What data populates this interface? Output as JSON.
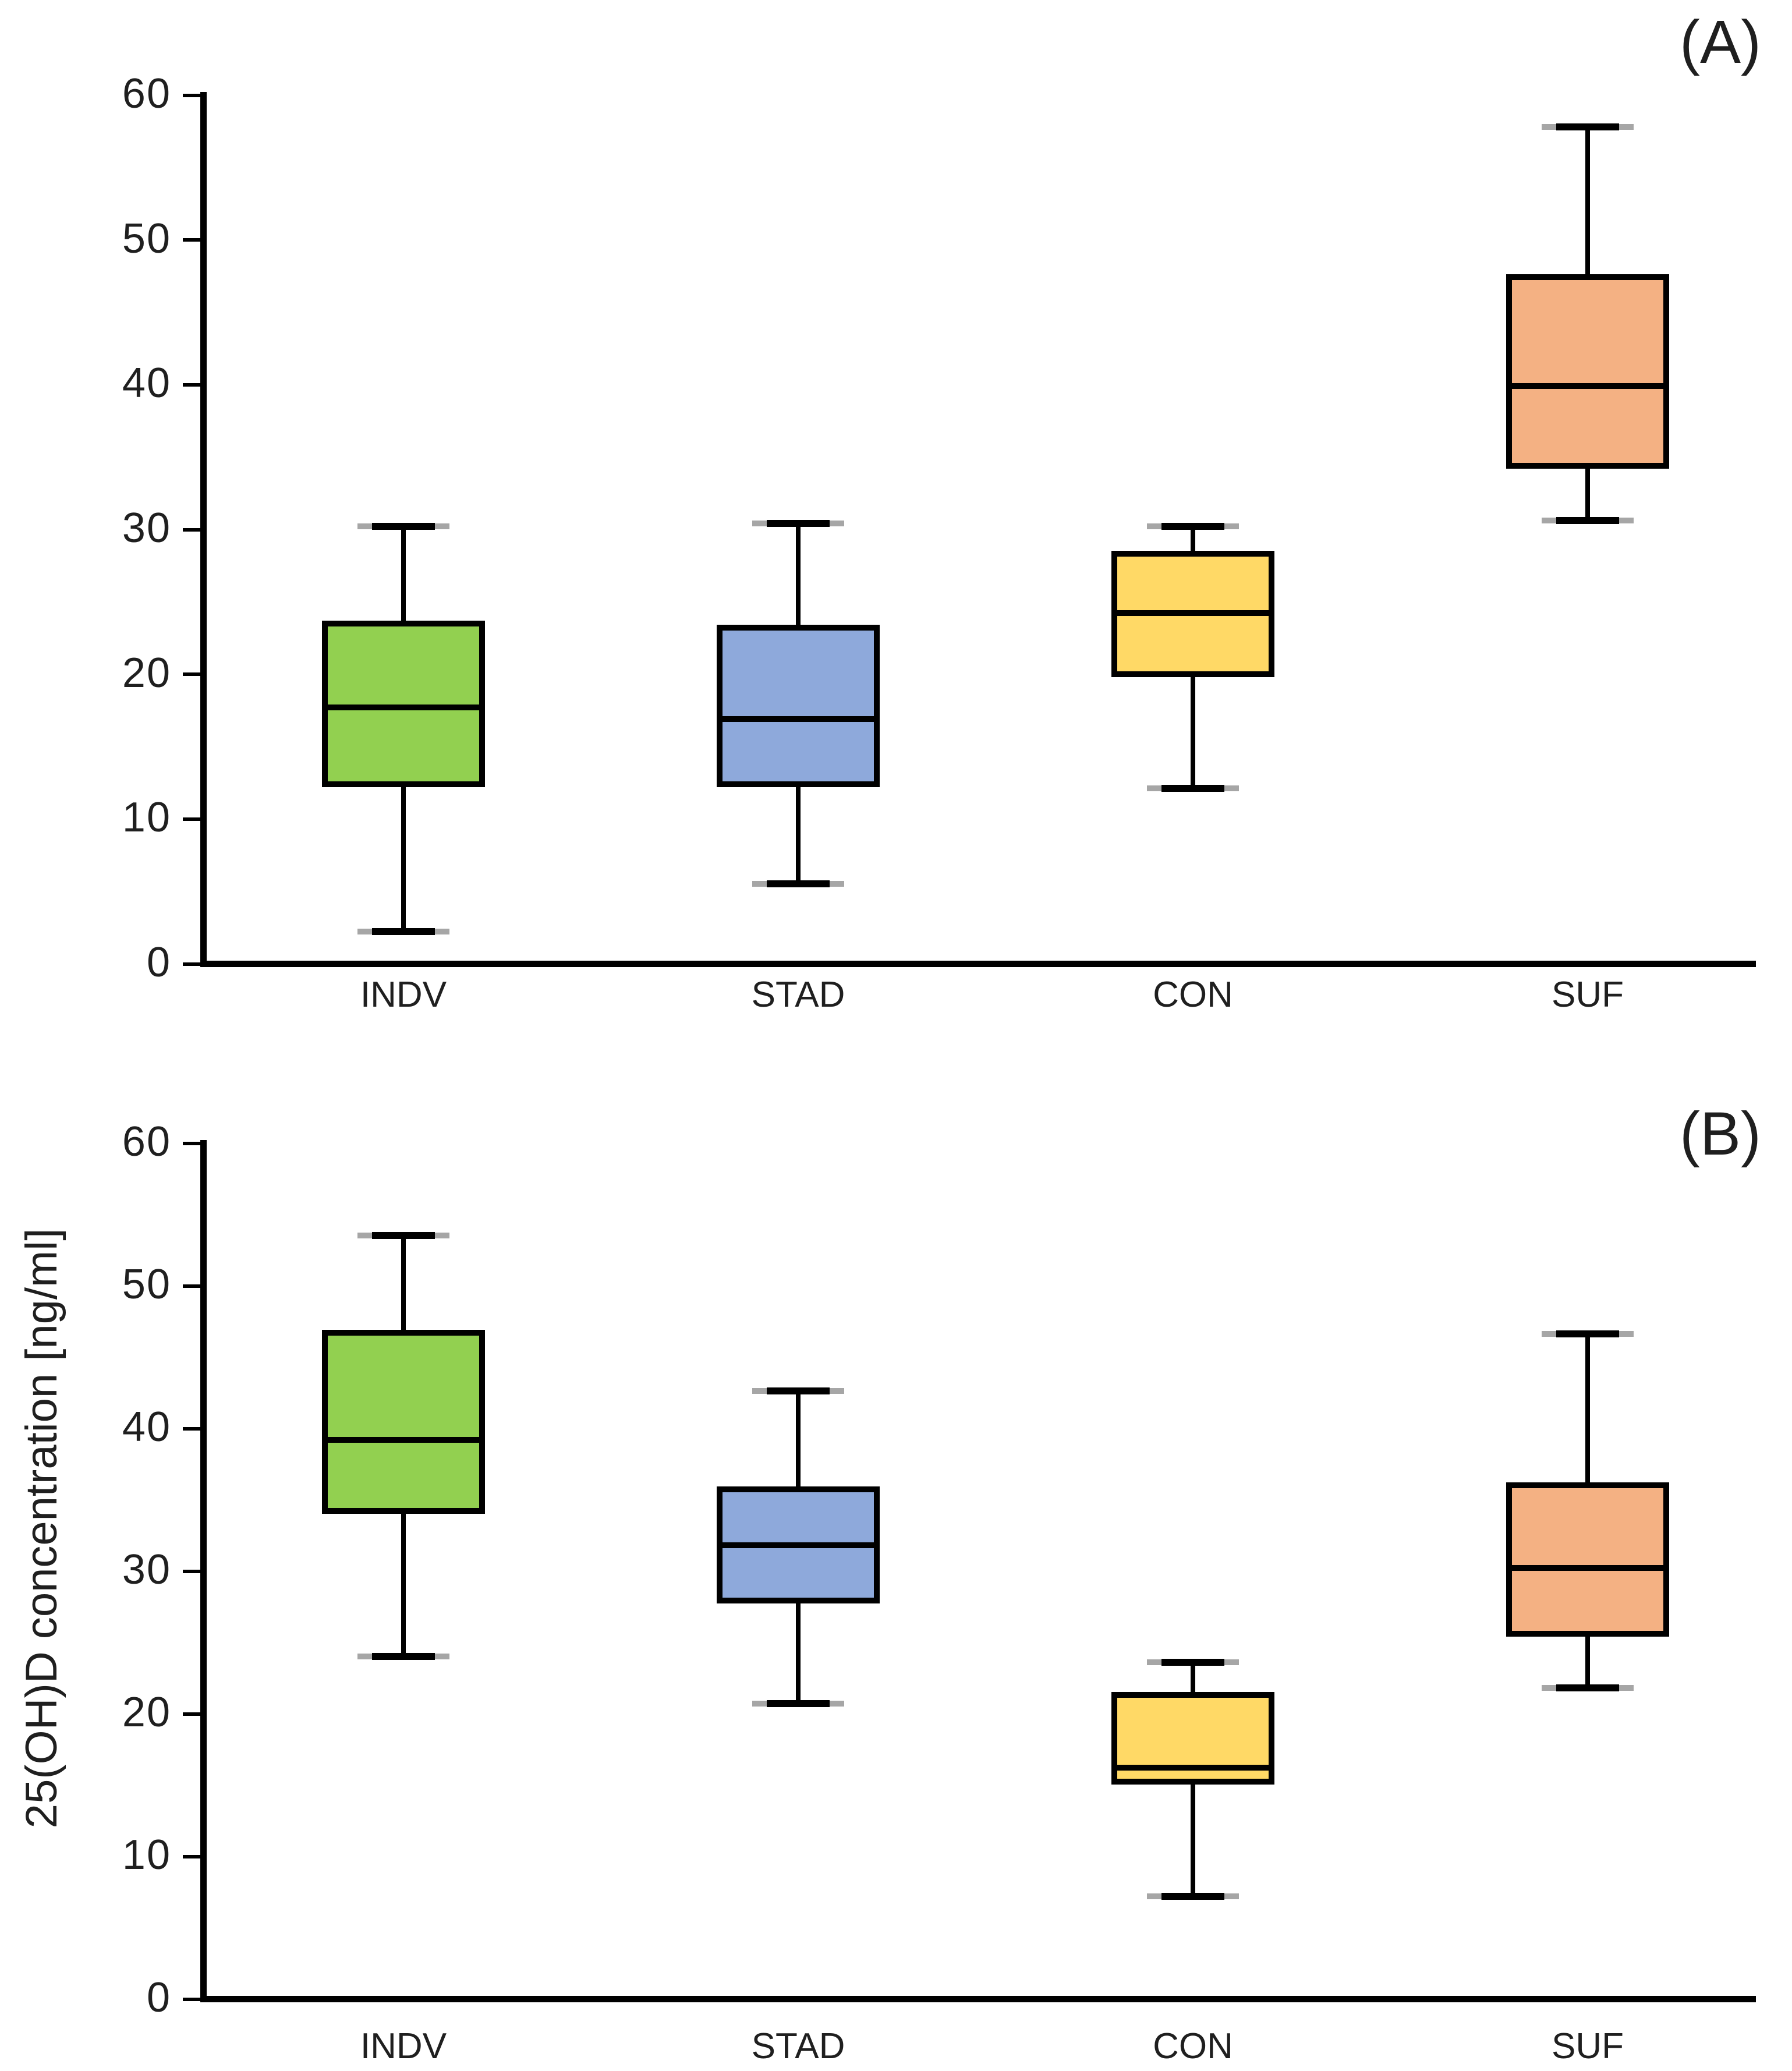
{
  "figure": {
    "background": "#ffffff",
    "ylabel": "25(OH)D concentration [ng/ml]",
    "text_color": "#1f1f1f",
    "line_color": "#000000",
    "panel_letters": [
      "(A)",
      "(B)"
    ]
  },
  "chart_data": [
    {
      "type": "boxplot",
      "panel": "A",
      "title": "(A)",
      "categories": [
        "INDV",
        "STAD",
        "CON",
        "SUF"
      ],
      "ylim": [
        0,
        60
      ],
      "yticks": [
        0,
        10,
        20,
        30,
        40,
        50,
        60
      ],
      "grid": false,
      "legend": "none",
      "series": [
        {
          "name": "INDV",
          "color": "#92D050",
          "whisker_low": 2.0,
          "q1": 12.0,
          "median": 17.5,
          "q3": 23.5,
          "whisker_high": 30.0
        },
        {
          "name": "STAD",
          "color": "#8EA9DB",
          "whisker_low": 5.3,
          "q1": 12.0,
          "median": 16.7,
          "q3": 23.2,
          "whisker_high": 30.2
        },
        {
          "name": "CON",
          "color": "#FFD966",
          "whisker_low": 11.9,
          "q1": 19.6,
          "median": 24.0,
          "q3": 28.3,
          "whisker_high": 30.0
        },
        {
          "name": "SUF",
          "color": "#F4B183",
          "whisker_low": 30.4,
          "q1": 34.0,
          "median": 39.7,
          "q3": 47.4,
          "whisker_high": 57.6
        }
      ]
    },
    {
      "type": "boxplot",
      "panel": "B",
      "title": "(B)",
      "ylabel": "25(OH)D concentration [ng/ml]",
      "categories": [
        "INDV",
        "STAD",
        "CON",
        "SUF"
      ],
      "ylim": [
        0,
        60
      ],
      "yticks": [
        0,
        10,
        20,
        30,
        40,
        50,
        60
      ],
      "grid": false,
      "legend": "none",
      "series": [
        {
          "name": "INDV",
          "color": "#92D050",
          "whisker_low": 23.8,
          "q1": 33.8,
          "median": 39.0,
          "q3": 46.7,
          "whisker_high": 53.3
        },
        {
          "name": "STAD",
          "color": "#8EA9DB",
          "whisker_low": 20.5,
          "q1": 27.5,
          "median": 31.6,
          "q3": 35.7,
          "whisker_high": 42.4
        },
        {
          "name": "CON",
          "color": "#FFD966",
          "whisker_low": 7.0,
          "q1": 14.8,
          "median": 16.0,
          "q3": 21.3,
          "whisker_high": 23.4
        },
        {
          "name": "SUF",
          "color": "#F4B183",
          "whisker_low": 21.6,
          "q1": 25.2,
          "median": 30.0,
          "q3": 36.0,
          "whisker_high": 46.4
        }
      ]
    }
  ]
}
